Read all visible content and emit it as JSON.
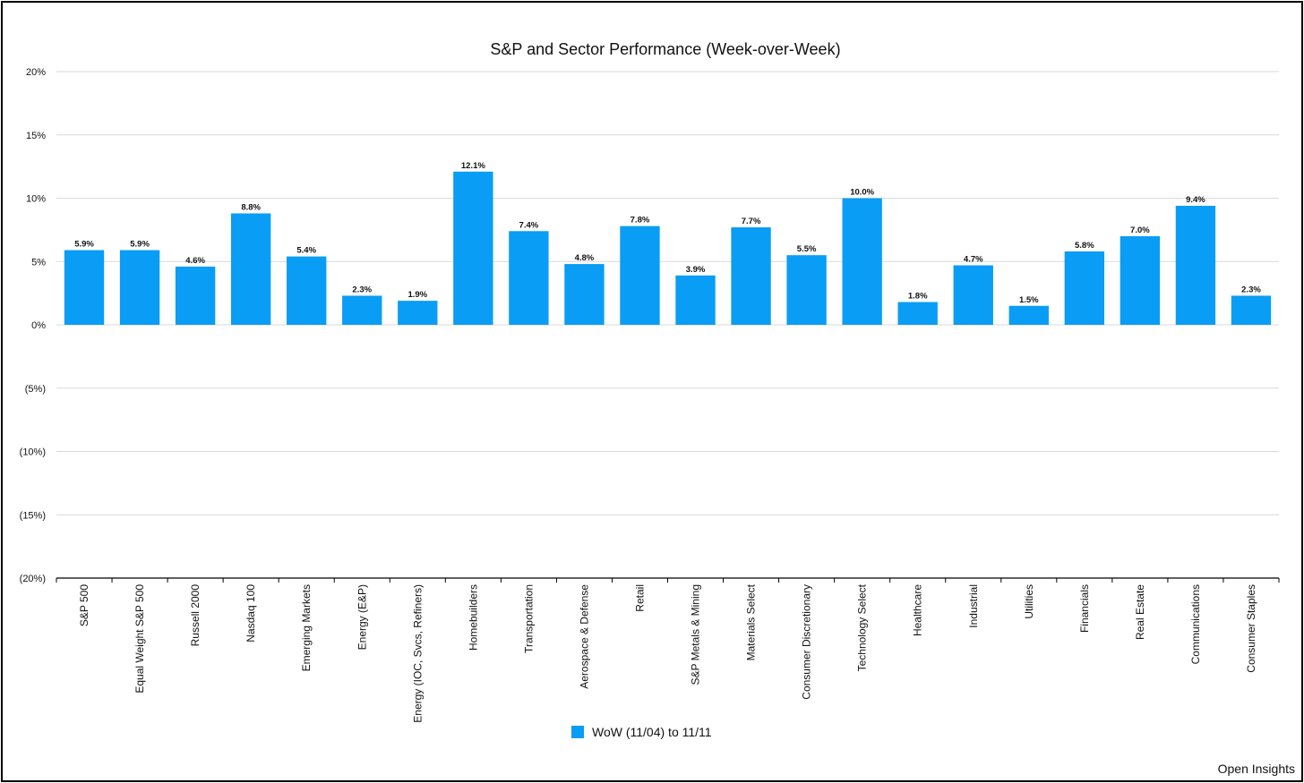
{
  "chart_data": {
    "type": "bar",
    "title": "S&P and Sector Performance (Week-over-Week)",
    "xlabel": "",
    "ylabel": "",
    "ylim": [
      -20,
      20
    ],
    "yticks": [
      20,
      15,
      10,
      5,
      0,
      -5,
      -10,
      -15,
      -20
    ],
    "ytick_labels": [
      "20%",
      "15%",
      "10%",
      "5%",
      "0%",
      "(5%)",
      "(10%)",
      "(15%)",
      "(20%)"
    ],
    "grid": true,
    "legend_position": "bottom",
    "categories": [
      "S&P 500",
      "Equal Weight S&P 500",
      "Russell 2000",
      "Nasdaq 100",
      "Emerging Markets",
      "Energy (E&P)",
      "Energy (IOC, Svcs, Refiners)",
      "Homebuilders",
      "Transportation",
      "Aerospace & Defense",
      "Retail",
      "S&P Metals & Mining",
      "Materials Select",
      "Consumer Discretionary",
      "Technology Select",
      "Healthcare",
      "Industrial",
      "Utilities",
      "Financials",
      "Real Estate",
      "Communications",
      "Consumer Staples"
    ],
    "series": [
      {
        "name": "WoW (11/04) to 11/11",
        "color": "#0a9df5",
        "values": [
          5.9,
          5.9,
          4.6,
          8.8,
          5.4,
          2.3,
          1.9,
          12.1,
          7.4,
          4.8,
          7.8,
          3.9,
          7.7,
          5.5,
          10.0,
          1.8,
          4.7,
          1.5,
          5.8,
          7.0,
          9.4,
          2.3
        ],
        "labels": [
          "5.9%",
          "5.9%",
          "4.6%",
          "8.8%",
          "5.4%",
          "2.3%",
          "1.9%",
          "12.1%",
          "7.4%",
          "4.8%",
          "7.8%",
          "3.9%",
          "7.7%",
          "5.5%",
          "10.0%",
          "1.8%",
          "4.7%",
          "1.5%",
          "5.8%",
          "7.0%",
          "9.4%",
          "2.3%"
        ]
      }
    ]
  },
  "footer": {
    "source": "Open Insights"
  }
}
